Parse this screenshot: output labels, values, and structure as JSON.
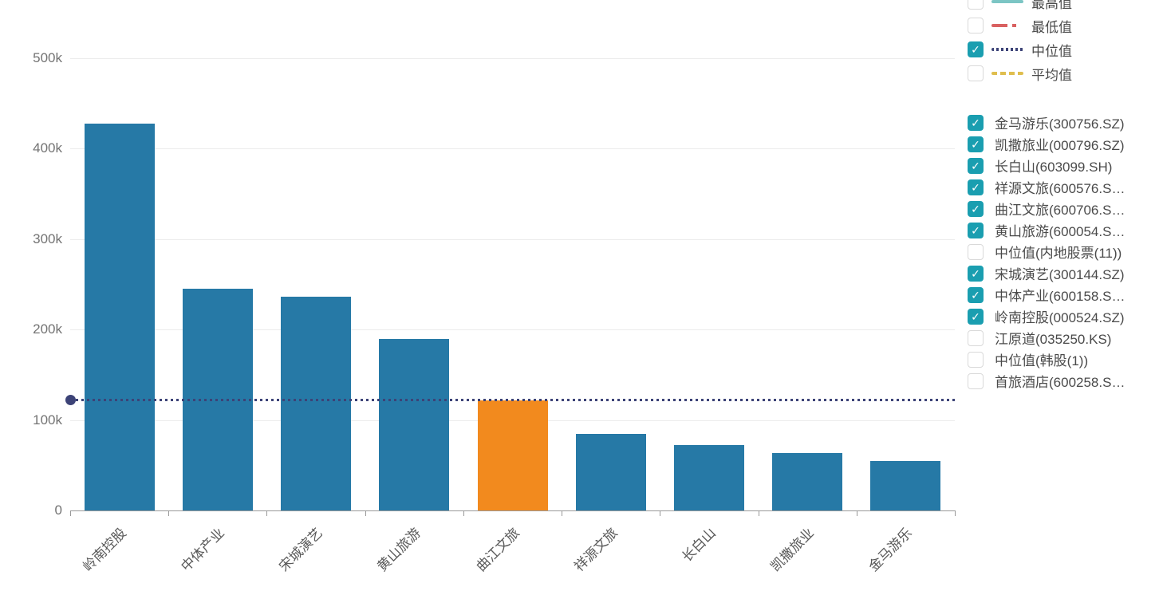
{
  "chart_data": {
    "type": "bar",
    "title": "",
    "xlabel": "",
    "ylabel": "",
    "categories": [
      "岭南控股",
      "中体产业",
      "宋城演艺",
      "黄山旅游",
      "曲江文旅",
      "祥源文旅",
      "长白山",
      "凯撒旅业",
      "金马游乐"
    ],
    "values": [
      427000,
      245000,
      236000,
      189000,
      122000,
      85000,
      72000,
      63000,
      55000
    ],
    "highlight_index": 4,
    "bar_color": "#2679A6",
    "highlight_color": "#F28A1E",
    "median_line": {
      "label": "中位值",
      "value": 122000,
      "color": "#3C4377",
      "style": "dotted"
    },
    "yticks": [
      0,
      100000,
      200000,
      300000,
      400000,
      500000
    ],
    "ytick_labels": [
      "0",
      "100k",
      "200k",
      "300k",
      "400k",
      "500k"
    ],
    "ylim": [
      0,
      563000
    ],
    "grid": true,
    "legend_position": "right"
  },
  "legend": {
    "checkbox_color": "#1A9EB0",
    "check_glyph": "✓",
    "metric_items": [
      {
        "label": "最高值",
        "checked": false,
        "line_style": "solid",
        "color": "#7CC5C4"
      },
      {
        "label": "最低值",
        "checked": false,
        "line_style": "dashdot",
        "color": "#D96161"
      },
      {
        "label": "中位值",
        "checked": true,
        "line_style": "dotted",
        "color": "#3C4377"
      },
      {
        "label": "平均值",
        "checked": false,
        "line_style": "dashed",
        "color": "#DFBE4E"
      }
    ],
    "stock_items": [
      {
        "label": "金马游乐(300756.SZ)",
        "checked": true
      },
      {
        "label": "凯撒旅业(000796.SZ)",
        "checked": true
      },
      {
        "label": "长白山(603099.SH)",
        "checked": true
      },
      {
        "label": "祥源文旅(600576.S…",
        "checked": true
      },
      {
        "label": "曲江文旅(600706.S…",
        "checked": true
      },
      {
        "label": "黄山旅游(600054.S…",
        "checked": true
      },
      {
        "label": "中位值(内地股票(11))",
        "checked": false
      },
      {
        "label": "宋城演艺(300144.SZ)",
        "checked": true
      },
      {
        "label": "中体产业(600158.S…",
        "checked": true
      },
      {
        "label": "岭南控股(000524.SZ)",
        "checked": true
      },
      {
        "label": "江原道(035250.KS)",
        "checked": false
      },
      {
        "label": "中位值(韩股(1))",
        "checked": false
      },
      {
        "label": "首旅酒店(600258.S…",
        "checked": false
      }
    ]
  }
}
